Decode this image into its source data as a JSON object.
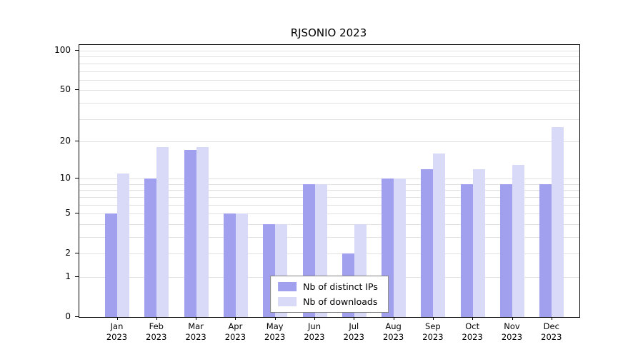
{
  "chart_data": {
    "type": "bar",
    "title": "RJSONIO 2023",
    "categories": [
      "Jan",
      "Feb",
      "Mar",
      "Apr",
      "May",
      "Jun",
      "Jul",
      "Aug",
      "Sep",
      "Oct",
      "Nov",
      "Dec"
    ],
    "year": "2023",
    "series": [
      {
        "name": "Nb of distinct IPs",
        "color": "#a0a0ee",
        "values": [
          5,
          10,
          17,
          5,
          4,
          9,
          2,
          10,
          12,
          9,
          9,
          9
        ]
      },
      {
        "name": "Nb of downloads",
        "color": "#d9d9f8",
        "values": [
          11,
          18,
          18,
          5,
          4,
          9,
          4,
          10,
          16,
          12,
          13,
          26
        ]
      }
    ],
    "y_axis": {
      "scale": "log10(x+1)",
      "tick_labels": [
        100,
        50,
        20,
        10,
        5,
        2,
        1,
        0
      ],
      "minor_gridlines": [
        3,
        4,
        6,
        7,
        8,
        9,
        30,
        40,
        60,
        70,
        80,
        90
      ],
      "top_value": 100
    },
    "legend": {
      "position": "bottom-center"
    },
    "grid": true,
    "colors": {
      "gridline": "#e2e2e2",
      "axis": "#000000",
      "background": "#ffffff"
    }
  }
}
